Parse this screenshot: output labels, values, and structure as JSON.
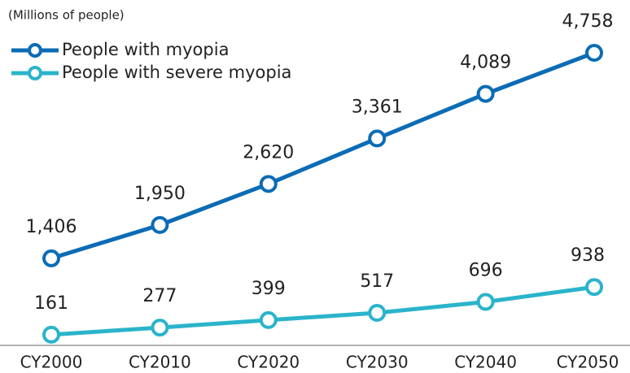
{
  "chart_data": {
    "type": "line",
    "subtitle": "(Millions of people)",
    "categories": [
      "CY2000",
      "CY2010",
      "CY2020",
      "CY2030",
      "CY2040",
      "CY2050"
    ],
    "series": [
      {
        "name": "People with myopia",
        "color": "#0b6cb5",
        "values": [
          1406,
          1950,
          2620,
          3361,
          4089,
          4758
        ],
        "value_labels": [
          "1,406",
          "1,950",
          "2,620",
          "3,361",
          "4,089",
          "4,758"
        ]
      },
      {
        "name": "People with severe myopia",
        "color": "#2ab4cb",
        "values": [
          161,
          277,
          399,
          517,
          696,
          938
        ],
        "value_labels": [
          "161",
          "277",
          "399",
          "517",
          "696",
          "938"
        ]
      }
    ]
  }
}
